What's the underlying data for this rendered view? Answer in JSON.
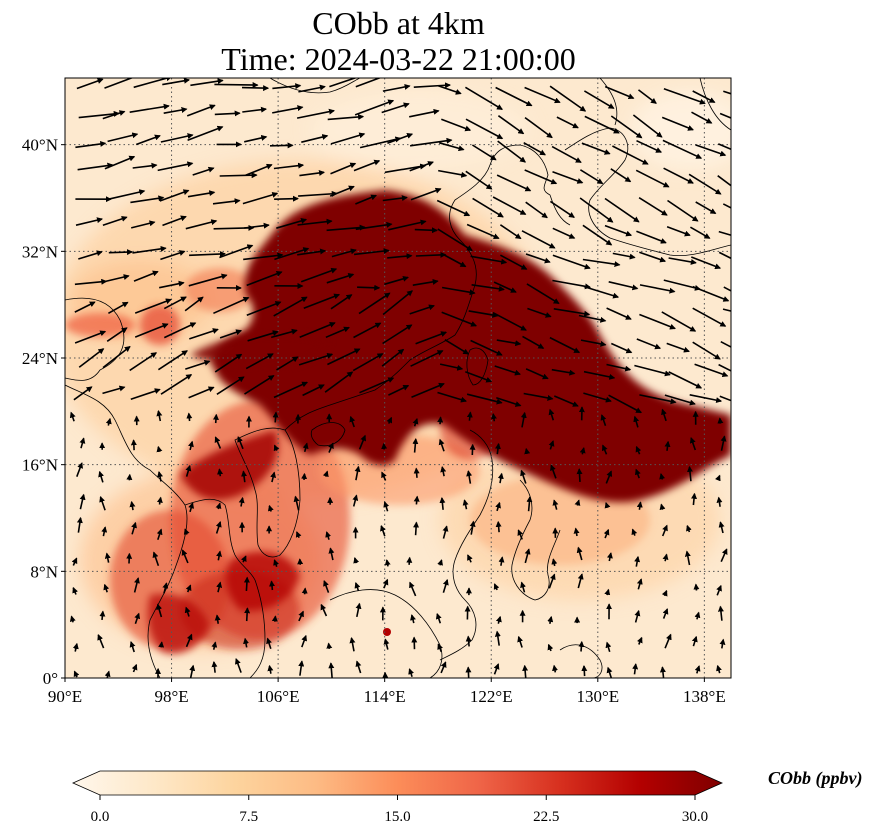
{
  "title": {
    "line1": "CObb at 4km",
    "line2": "Time: 2024-03-22 21:00:00"
  },
  "map": {
    "lon_range": [
      90,
      140
    ],
    "lat_range": [
      0,
      45
    ],
    "x_ticks": [
      {
        "value": 90,
        "label": "90°E"
      },
      {
        "value": 98,
        "label": "98°E"
      },
      {
        "value": 106,
        "label": "106°E"
      },
      {
        "value": 114,
        "label": "114°E"
      },
      {
        "value": 122,
        "label": "122°E"
      },
      {
        "value": 130,
        "label": "130°E"
      },
      {
        "value": 138,
        "label": "138°E"
      }
    ],
    "y_ticks": [
      {
        "value": 0,
        "label": "0°"
      },
      {
        "value": 8,
        "label": "8°N"
      },
      {
        "value": 16,
        "label": "16°N"
      },
      {
        "value": 24,
        "label": "24°N"
      },
      {
        "value": 32,
        "label": "32°N"
      },
      {
        "value": 40,
        "label": "40°N"
      }
    ],
    "gridlines": "dotted",
    "colormap": "OrRd",
    "wind_vectors": true
  },
  "colorbar": {
    "label": "CObb (ppbv)",
    "range": [
      0,
      30
    ],
    "extend": "both",
    "ticks": [
      {
        "value": 0,
        "label": "0.0"
      },
      {
        "value": 7.5,
        "label": "7.5"
      },
      {
        "value": 15,
        "label": "15.0"
      },
      {
        "value": 22.5,
        "label": "22.5"
      },
      {
        "value": 30,
        "label": "30.0"
      }
    ],
    "colors": [
      "#fff7ec",
      "#fee8c8",
      "#fdd49e",
      "#fdbb84",
      "#fc8d59",
      "#ef6548",
      "#d7301f",
      "#b30000",
      "#7f0000"
    ]
  }
}
